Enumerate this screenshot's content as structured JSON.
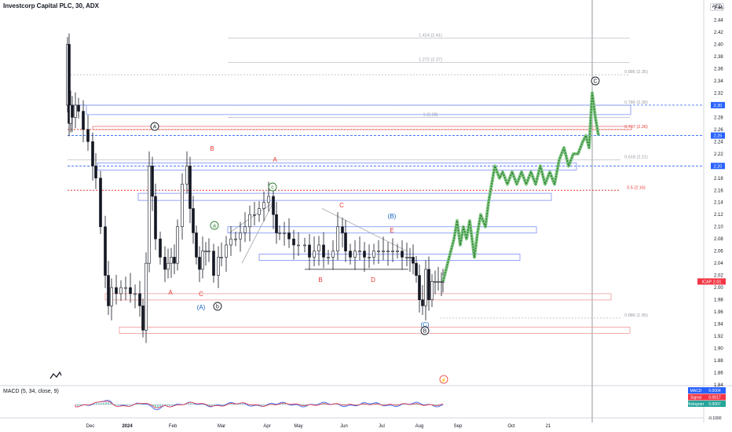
{
  "header": {
    "title": "Investcorp Capital PLC, 30, ADX",
    "currency": "AED"
  },
  "macd": {
    "title": "MACD (5, 34, close, 9)",
    "badges": [
      {
        "label": "MACD",
        "value": "0.0004",
        "color": "#2962ff"
      },
      {
        "label": "Signal",
        "value": "0.0017",
        "color": "#f23645"
      },
      {
        "label": "Histogram",
        "value": "0.0007",
        "color": "#26a69a"
      }
    ]
  },
  "colors": {
    "red": "#e53935",
    "blue": "#1565c0",
    "green": "#2e7d32",
    "candle": "#131722",
    "axis_text": "#131722",
    "grid": "#e0e3eb"
  },
  "chart_data": {
    "type": "candlestick",
    "xlabel": "",
    "ylabel": "",
    "ylim": [
      1.84,
      2.46
    ],
    "y_ticks": [
      "1.84",
      "1.86",
      "1.88",
      "1.90",
      "1.92",
      "1.94",
      "1.96",
      "1.98",
      "2.00",
      "2.02",
      "2.04",
      "2.06",
      "2.08",
      "2.10",
      "2.12",
      "2.14",
      "2.16",
      "2.18",
      "2.20",
      "2.22",
      "2.24",
      "2.26",
      "2.28",
      "2.30",
      "2.32",
      "2.34",
      "2.36",
      "2.38",
      "2.40",
      "2.42",
      "2.44",
      "2.46"
    ],
    "x_ticks": [
      "Dec",
      "2024",
      "Feb",
      "Mar",
      "Apr",
      "May",
      "Jun",
      "Jul",
      "Aug",
      "Sep",
      "Oct",
      "21"
    ],
    "price_levels": [
      {
        "price": 2.3,
        "label": "2.30",
        "color": "#2962ff"
      },
      {
        "price": 2.25,
        "label": "2.25",
        "color": "#2962ff"
      },
      {
        "price": 2.2,
        "label": "2.20",
        "color": "#2962ff"
      },
      {
        "price": 2.01,
        "label": "ICAP  2.01",
        "color": "#f23645"
      },
      {
        "price": 2.16,
        "label": "",
        "color": "#e53935"
      },
      {
        "price": 2.26,
        "label": "",
        "color": "#e53935"
      }
    ],
    "fib_levels": [
      {
        "label": "1.414 (2.41)",
        "price": 2.41
      },
      {
        "label": "1.272 (2.37)",
        "price": 2.37
      },
      {
        "label": "0.886 (2.35)",
        "price": 2.35
      },
      {
        "label": "1 (2.28)",
        "price": 2.28
      },
      {
        "label": "0.786 (2.30)",
        "price": 2.3
      },
      {
        "label": "0.707 (2.26)",
        "price": 2.26
      },
      {
        "label": "0.618 (2.21)",
        "price": 2.21
      },
      {
        "label": "0.5 (2.16)",
        "price": 2.16
      },
      {
        "label": "0.886 (1.95)",
        "price": 1.95
      }
    ],
    "wave_labels": [
      {
        "text": "A",
        "color": "#131722",
        "circled": true,
        "date_idx": 4,
        "price": 2.24
      },
      {
        "text": "B",
        "color": "#e53935",
        "circled": false,
        "date_idx": 6,
        "price": 2.23
      },
      {
        "text": "A",
        "color": "#e53935",
        "circled": false,
        "date_idx": 7,
        "price": 2.19
      },
      {
        "text": "A",
        "color": "#e53935",
        "circled": false,
        "date_idx": 5,
        "price": 1.99
      },
      {
        "text": "C",
        "color": "#e53935",
        "circled": false,
        "date_idx": 6,
        "price": 1.99
      },
      {
        "text": "(A)",
        "color": "#1565c0",
        "circled": false,
        "date_idx": 6,
        "price": 1.97
      },
      {
        "text": "a",
        "color": "#2e7d32",
        "circled": true,
        "date_idx": 7,
        "price": 2.09
      },
      {
        "text": "b",
        "color": "#131722",
        "circled": true,
        "date_idx": 7,
        "price": 1.97
      },
      {
        "text": "c",
        "color": "#2e7d32",
        "circled": true,
        "date_idx": 9,
        "price": 2.16
      },
      {
        "text": "C",
        "color": "#e53935",
        "circled": false,
        "date_idx": 11,
        "price": 2.13
      },
      {
        "text": "(B)",
        "color": "#1565c0",
        "circled": false,
        "date_idx": 13,
        "price": 2.11
      },
      {
        "text": "E",
        "color": "#e53935",
        "circled": false,
        "date_idx": 13,
        "price": 2.08
      },
      {
        "text": "B",
        "color": "#e53935",
        "circled": false,
        "date_idx": 10,
        "price": 2.01
      },
      {
        "text": "D",
        "color": "#e53935",
        "circled": false,
        "date_idx": 12,
        "price": 2.01
      },
      {
        "text": "(C)",
        "color": "#1565c0",
        "circled": false,
        "date_idx": 14,
        "price": 1.94
      },
      {
        "text": "B",
        "color": "#131722",
        "circled": true,
        "date_idx": 14,
        "price": 1.93
      },
      {
        "text": "C",
        "color": "#131722",
        "circled": true,
        "date_idx": 20,
        "price": 2.33
      }
    ]
  }
}
